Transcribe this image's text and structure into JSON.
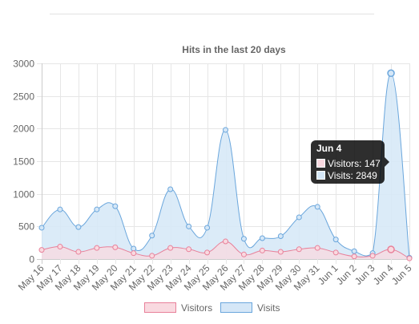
{
  "chart_data": {
    "type": "area",
    "title": "Hits in the last 20 days",
    "categories": [
      "May 16",
      "May 17",
      "May 18",
      "May 19",
      "May 20",
      "May 21",
      "May 22",
      "May 23",
      "May 24",
      "May 25",
      "May 26",
      "May 27",
      "May 28",
      "May 29",
      "May 30",
      "May 31",
      "Jun 1",
      "Jun 2",
      "Jun 3",
      "Jun 4",
      "Jun 5"
    ],
    "series": [
      {
        "name": "Visitors",
        "color": "#e8819a",
        "fill": "#f9d9e0",
        "values": [
          140,
          190,
          110,
          170,
          180,
          90,
          50,
          170,
          150,
          100,
          270,
          70,
          130,
          110,
          150,
          170,
          100,
          40,
          50,
          147,
          10
        ]
      },
      {
        "name": "Visits",
        "color": "#6aa6dc",
        "fill": "#d5e7f7",
        "values": [
          480,
          760,
          490,
          760,
          810,
          160,
          360,
          1070,
          500,
          480,
          1980,
          310,
          320,
          350,
          640,
          800,
          300,
          120,
          90,
          2849,
          20
        ]
      }
    ],
    "y_ticks": [
      "0",
      "500",
      "1000",
      "1500",
      "2000",
      "2500",
      "3000"
    ],
    "ylim": [
      0,
      3000
    ],
    "grid": true,
    "legend": "bottom",
    "tooltip": {
      "title": "Jun 4",
      "lines": [
        {
          "series": "Visitors",
          "text": "Visitors: 147"
        },
        {
          "series": "Visits",
          "text": "Visits: 2849"
        }
      ]
    }
  }
}
